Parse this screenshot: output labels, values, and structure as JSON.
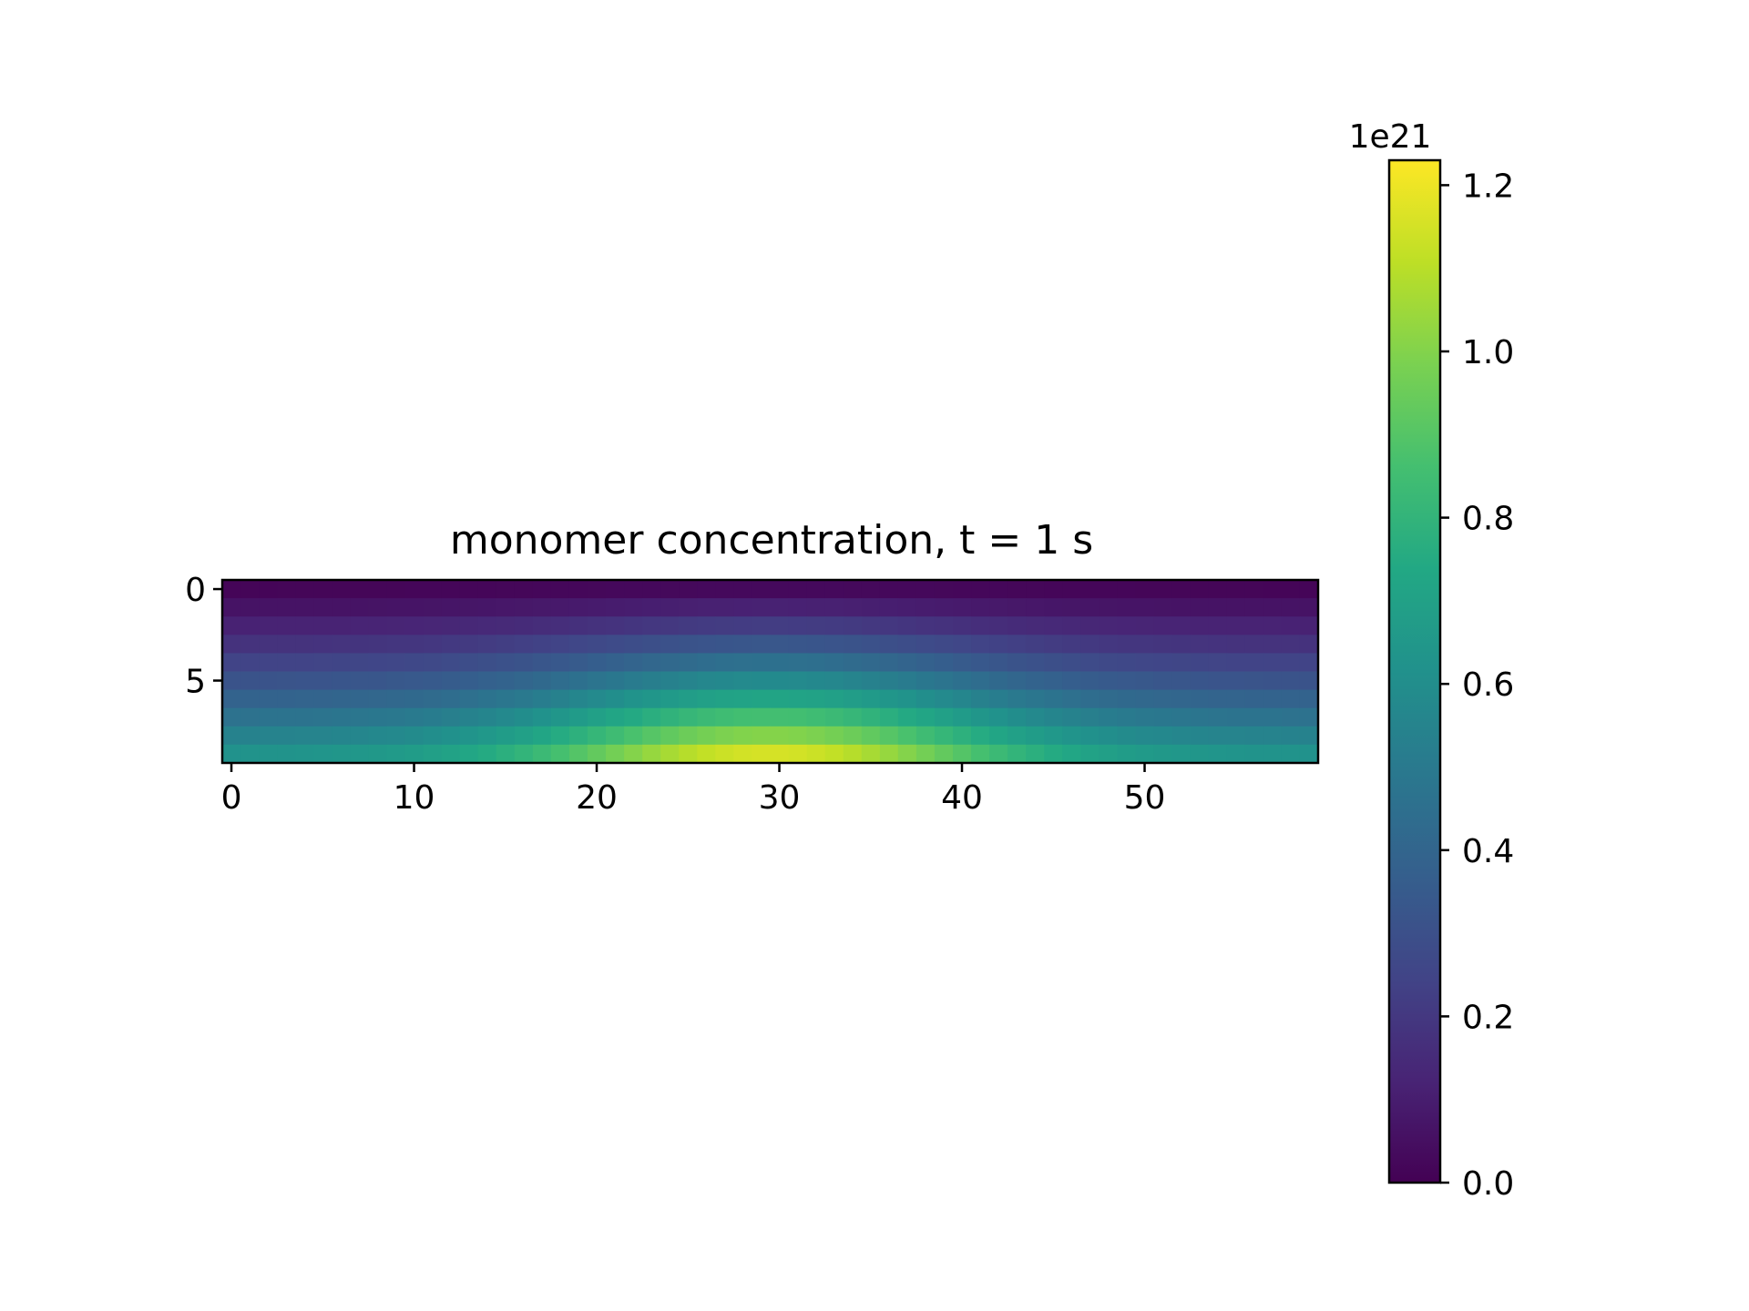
{
  "chart_data": {
    "type": "heatmap",
    "title": "monomer concentration, t = 1 s",
    "xlabel": "",
    "ylabel": "",
    "rows": 10,
    "cols": 60,
    "value_scale": "1e21",
    "xlim": [
      -0.5,
      59.5
    ],
    "ylim": [
      9.5,
      -0.5
    ],
    "x_ticks": [
      0,
      10,
      20,
      30,
      40,
      50
    ],
    "x_tick_labels": [
      "0",
      "10",
      "20",
      "30",
      "40",
      "50"
    ],
    "y_ticks": [
      0,
      5
    ],
    "y_tick_labels": [
      "0",
      "5"
    ],
    "grid": false,
    "field_model": {
      "description": "approximate cell value ≈ (edge + (peak - edge) · exp(-((col - center)/width)^2)) · ((row + 0.5)/rows)^exponent, in units of 1e21",
      "center_col": 29.5,
      "width_cols": 13,
      "exponent": 1.25,
      "edge_value": 0.66,
      "peak_value": 1.23
    },
    "colorbar": {
      "colormap": "viridis",
      "multiplier_label": "1e21",
      "vmin": 0.0,
      "vmax": 1.23,
      "ticks": [
        0.0,
        0.2,
        0.4,
        0.6,
        0.8,
        1.0,
        1.2
      ],
      "tick_labels": [
        "0.0",
        "0.2",
        "0.4",
        "0.6",
        "0.8",
        "1.0",
        "1.2"
      ]
    }
  }
}
